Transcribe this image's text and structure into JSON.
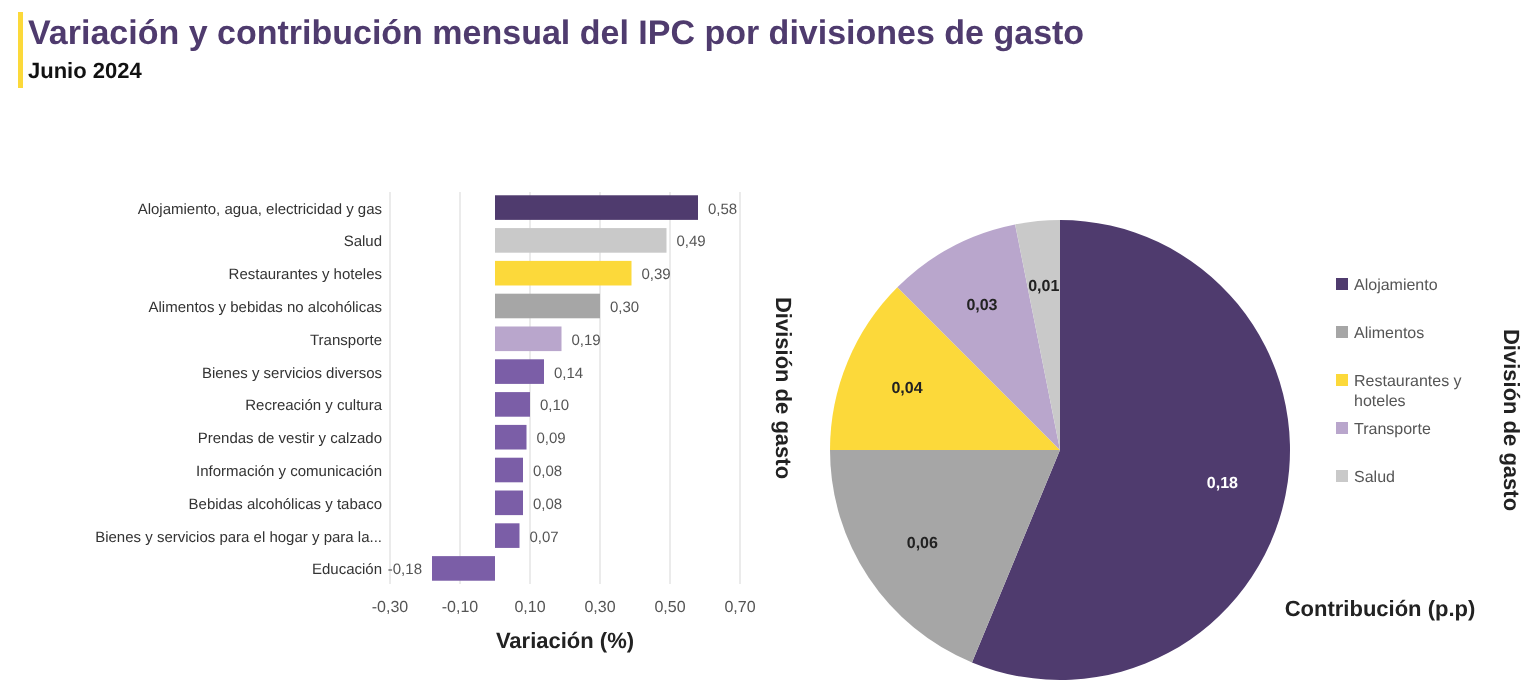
{
  "chart_data": [
    {
      "type": "bar",
      "orientation": "horizontal",
      "title": "Variación  y contribución mensual del IPC por divisiones de gasto",
      "subtitle": "Junio 2024",
      "xlabel": "Variación (%)",
      "ylabel": "División de gasto",
      "categories": [
        "Alojamiento, agua, electricidad y gas",
        "Salud",
        "Restaurantes y hoteles",
        "Alimentos y bebidas no alcohólicas",
        "Transporte",
        "Bienes y servicios diversos",
        "Recreación y cultura",
        "Prendas de vestir y calzado",
        "Información y comunicación",
        "Bebidas alcohólicas y tabaco",
        "Bienes y servicios para el hogar y para la...",
        "Educación"
      ],
      "values": [
        0.58,
        0.49,
        0.39,
        0.3,
        0.19,
        0.14,
        0.1,
        0.09,
        0.08,
        0.08,
        0.07,
        -0.18
      ],
      "value_labels": [
        "0,58",
        "0,49",
        "0,39",
        "0,30",
        "0,19",
        "0,14",
        "0,10",
        "0,09",
        "0,08",
        "0,08",
        "0,07",
        "-0,18"
      ],
      "colors": [
        "#4f3b6e",
        "#c9c9c9",
        "#fcd93a",
        "#a6a6a6",
        "#b9a6cc",
        "#7b5ea7",
        "#7b5ea7",
        "#7b5ea7",
        "#7b5ea7",
        "#7b5ea7",
        "#7b5ea7",
        "#7b5ea7"
      ],
      "xlim": [
        -0.3,
        0.7
      ],
      "xticks": [
        {
          "value": -0.3,
          "label": "-0,30"
        },
        {
          "value": -0.1,
          "label": "-0,10"
        },
        {
          "value": 0.1,
          "label": "0,10"
        },
        {
          "value": 0.3,
          "label": "0,30"
        },
        {
          "value": 0.5,
          "label": "0,50"
        },
        {
          "value": 0.7,
          "label": "0,70"
        }
      ],
      "grid": "x"
    },
    {
      "type": "pie",
      "title": "Contribución (p.p)",
      "legend_title": "División de gasto",
      "legend": "right",
      "categories": [
        "Alojamiento",
        "Alimentos",
        "Restaurantes y hoteles",
        "Transporte",
        "Salud"
      ],
      "values": [
        0.18,
        0.06,
        0.04,
        0.03,
        0.01
      ],
      "value_labels": [
        "0,18",
        "0,06",
        "0,04",
        "0,03",
        "0,01"
      ],
      "colors": [
        "#4f3b6e",
        "#a6a6a6",
        "#fcd93a",
        "#b9a6cc",
        "#c9c9c9"
      ]
    }
  ]
}
